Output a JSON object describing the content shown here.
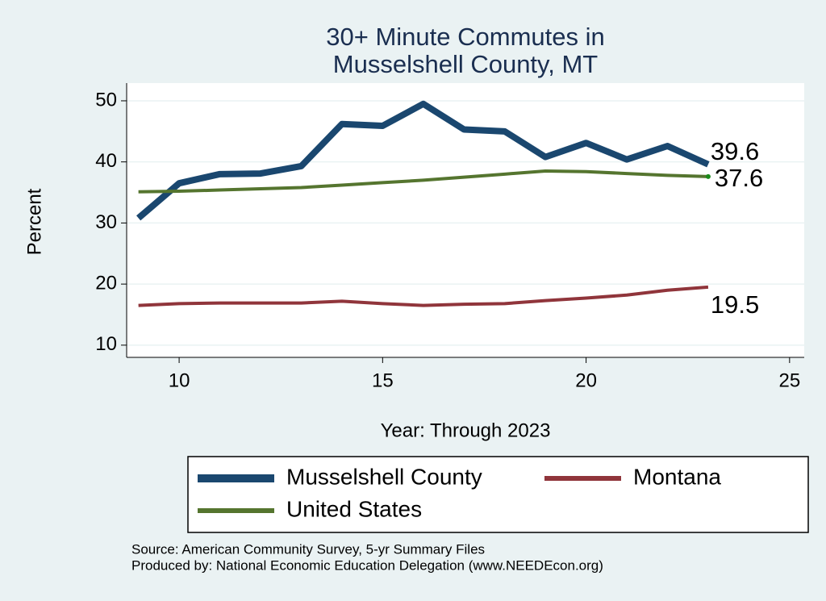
{
  "chart_data": {
    "type": "line",
    "title": [
      "30+ Minute Commutes in",
      "Musselshell County, MT"
    ],
    "x_label": "Year: Through 2023",
    "y_label": "Percent",
    "x": [
      9,
      10,
      11,
      12,
      13,
      14,
      15,
      16,
      17,
      18,
      19,
      20,
      21,
      22,
      23
    ],
    "series": [
      {
        "name": "Musselshell County",
        "color": "#1a476f",
        "values": [
          30.8,
          36.5,
          38.0,
          38.1,
          39.3,
          46.2,
          45.9,
          49.5,
          45.3,
          45.0,
          40.8,
          43.1,
          40.4,
          42.6,
          39.6
        ]
      },
      {
        "name": "Montana",
        "color": "#90353b",
        "values": [
          16.5,
          16.8,
          16.9,
          16.9,
          16.9,
          17.2,
          16.8,
          16.5,
          16.7,
          16.8,
          17.3,
          17.7,
          18.2,
          19.0,
          19.5
        ]
      },
      {
        "name": "United States",
        "color": "#55752f",
        "values": [
          35.1,
          35.2,
          35.4,
          35.6,
          35.8,
          36.2,
          36.6,
          37.0,
          37.5,
          38.0,
          38.5,
          38.4,
          38.1,
          37.8,
          37.6
        ]
      }
    ],
    "xlim": [
      8.71,
      25.36
    ],
    "xticks": [
      10,
      15,
      20,
      25
    ],
    "ylim": [
      8.0,
      52.9
    ],
    "yticks": [
      10,
      20,
      30,
      40,
      50
    ],
    "grid": true,
    "notes": [
      "Source: American Community Survey, 5-yr Summary Files",
      "Produced by: National Economic Education Delegation (www.NEEDEcon.org)"
    ]
  }
}
